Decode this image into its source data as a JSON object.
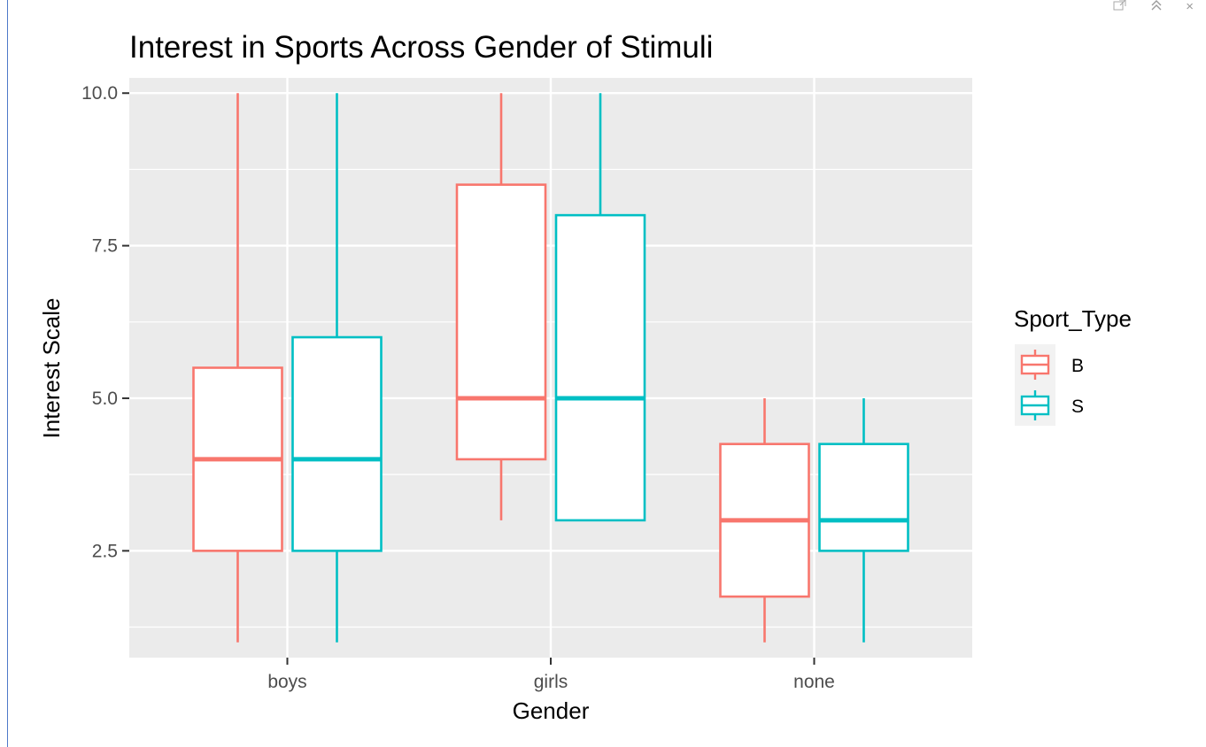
{
  "window_controls": {
    "popout_icon": "popout-icon",
    "collapse_icon": "double-chevron-up-icon",
    "close_icon": "close-icon",
    "collapse_glyph": "⌃",
    "close_glyph": "×"
  },
  "chart_data": {
    "type": "boxplot",
    "title": "Interest in Sports Across Gender of Stimuli",
    "xlabel": "Gender",
    "ylabel": "Interest Scale",
    "categories": [
      "boys",
      "girls",
      "none"
    ],
    "ylim": [
      0.75,
      10.25
    ],
    "yticks": [
      2.5,
      5.0,
      7.5,
      10.0
    ],
    "ytick_labels": [
      "2.5",
      "5.0",
      "7.5",
      "10.0"
    ],
    "grid": true,
    "legend_title": "Sport_Type",
    "legend_position": "right",
    "series": [
      {
        "name": "B",
        "color": "#f8766d",
        "boxes": [
          {
            "category": "boys",
            "min": 1,
            "q1": 2.5,
            "median": 4,
            "q3": 5.5,
            "max": 10
          },
          {
            "category": "girls",
            "min": 3,
            "q1": 4,
            "median": 5,
            "q3": 8.5,
            "max": 10
          },
          {
            "category": "none",
            "min": 1,
            "q1": 1.75,
            "median": 3,
            "q3": 4.25,
            "max": 5
          }
        ]
      },
      {
        "name": "S",
        "color": "#00bfc4",
        "boxes": [
          {
            "category": "boys",
            "min": 1,
            "q1": 2.5,
            "median": 4,
            "q3": 6,
            "max": 10
          },
          {
            "category": "girls",
            "min": 3,
            "q1": 3,
            "median": 5,
            "q3": 8,
            "max": 10
          },
          {
            "category": "none",
            "min": 1,
            "q1": 2.5,
            "median": 3,
            "q3": 4.25,
            "max": 5
          }
        ]
      }
    ]
  }
}
